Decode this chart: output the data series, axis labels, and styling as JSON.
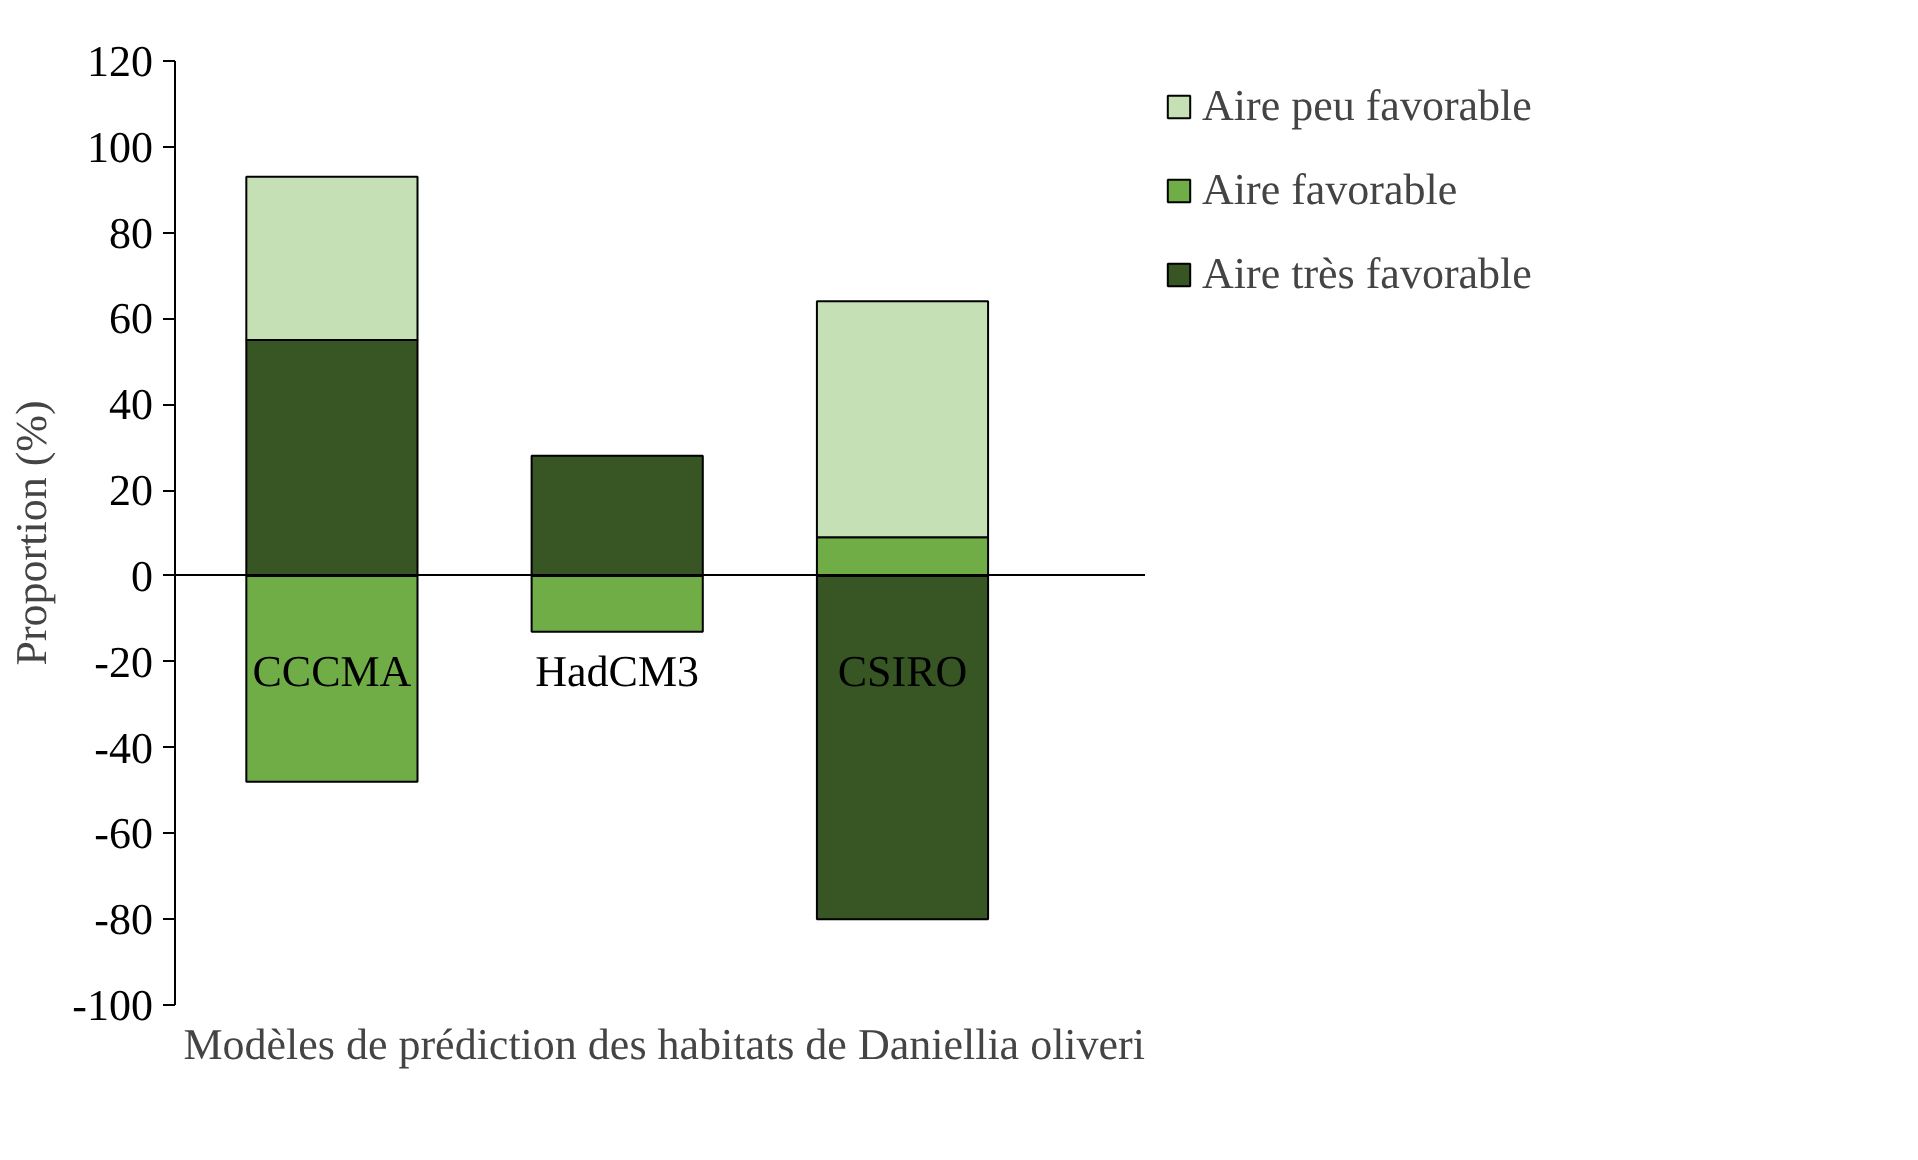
{
  "chart_data": {
    "type": "bar",
    "stacked": true,
    "xlabel": "Modèles de prédiction des habitats de Daniellia oliveri",
    "ylabel": "Proportion (%)",
    "categories": [
      "CCCMA",
      "HadCM3",
      "CSIRO"
    ],
    "series": [
      {
        "name": "Aire très favorable",
        "color": "#375623",
        "values": [
          55,
          28,
          -80
        ]
      },
      {
        "name": "Aire favorable",
        "color": "#70ad47",
        "values": [
          -48,
          -13,
          9
        ]
      },
      {
        "name": "Aire peu favorable",
        "color": "#c5e0b4",
        "values": [
          38,
          null,
          55
        ]
      }
    ],
    "ylim": [
      -100,
      120
    ],
    "yticks": [
      -100,
      -80,
      -60,
      -40,
      -20,
      0,
      20,
      40,
      60,
      80,
      100,
      120
    ],
    "grid": false,
    "legend": "right"
  }
}
